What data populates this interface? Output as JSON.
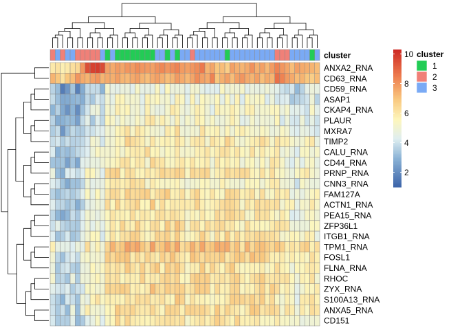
{
  "chart_data": {
    "type": "heatmap",
    "annotation_label": "cluster",
    "legend_title": "cluster",
    "cluster_levels": [
      {
        "label": "1",
        "color": "#22cc55"
      },
      {
        "label": "2",
        "color": "#f08078"
      },
      {
        "label": "3",
        "color": "#7aaaf5"
      }
    ],
    "color_scale": {
      "range": [
        1,
        10.3
      ],
      "ticks": [
        "10",
        "8",
        "6",
        "4",
        "2"
      ],
      "tick_values": [
        10,
        8,
        6,
        4,
        2
      ],
      "stops": [
        {
          "value": 1.0,
          "color": "#3a62a8"
        },
        {
          "value": 3.0,
          "color": "#8cb4d6"
        },
        {
          "value": 4.3,
          "color": "#dfeef0"
        },
        {
          "value": 5.6,
          "color": "#fdf6bc"
        },
        {
          "value": 7.0,
          "color": "#f9c77e"
        },
        {
          "value": 8.5,
          "color": "#ee7e4f"
        },
        {
          "value": 10.3,
          "color": "#ce2a24"
        }
      ]
    },
    "column_clusters": [
      2,
      3,
      2,
      3,
      3,
      2,
      2,
      2,
      2,
      2,
      3,
      1,
      3,
      1,
      1,
      1,
      1,
      1,
      1,
      1,
      1,
      3,
      3,
      1,
      3,
      1,
      3,
      3,
      2,
      3,
      3,
      3,
      3,
      3,
      3,
      1,
      3,
      3,
      3,
      3,
      3,
      3,
      3,
      3,
      3,
      2,
      2,
      2,
      3,
      3,
      3,
      3,
      1,
      3
    ],
    "rows": [
      {
        "gene": "ANXA2_RNA",
        "base": 7.2,
        "values": [
          6.0,
          6.2,
          5.8,
          6.0,
          6.3,
          6.5,
          8.0,
          9.5,
          9.8,
          9.9,
          9.6,
          7.8,
          7.6,
          7.9,
          7.7,
          8.0,
          7.9,
          8.2,
          8.0,
          7.9,
          7.8,
          8.1,
          8.3,
          8.0,
          8.2,
          8.4,
          7.9,
          7.8,
          8.0,
          8.2,
          8.6,
          7.4,
          7.7,
          7.0,
          7.2,
          6.8,
          7.8,
          7.5,
          7.4,
          7.6,
          8.1,
          7.5,
          7.8,
          7.3,
          7.9,
          8.4,
          8.0,
          7.7,
          7.2,
          7.8,
          7.6,
          7.5,
          7.4,
          7.2
        ]
      },
      {
        "gene": "CD63_RNA",
        "base": 7.6,
        "values": [
          7.4,
          7.0,
          6.2,
          7.0,
          7.2,
          8.0,
          7.6,
          7.4,
          7.8,
          8.0,
          7.4,
          7.6,
          7.5,
          7.8,
          7.4,
          7.3,
          7.6,
          7.8,
          7.4,
          7.2,
          7.6,
          7.8,
          7.5,
          7.2,
          7.4,
          7.9,
          7.6,
          7.3,
          7.7,
          8.2,
          7.8,
          7.6,
          8.4,
          7.0,
          7.5,
          7.8,
          7.2,
          7.8,
          8.0,
          7.6,
          7.4,
          7.8,
          7.2,
          7.6,
          7.4,
          8.8,
          8.4,
          7.9,
          7.6,
          7.2,
          7.4,
          7.0,
          6.8,
          7.2
        ]
      }
    ]
  },
  "row_labels": [
    "ANXA2_RNA",
    "CD63_RNA",
    "CD59_RNA",
    "ASAP1",
    "CKAP4_RNA",
    "PLAUR",
    "MXRA7",
    "TIMP2",
    "CALU_RNA",
    "CD44_RNA",
    "PRNP_RNA",
    "CNN3_RNA",
    "FAM127A",
    "ACTN1_RNA",
    "PEA15_RNA",
    "ZFP36L1",
    "ITGB1_RNA",
    "TPM1_RNA",
    "FOSL1",
    "FLNA_RNA",
    "RHOC",
    "ZYX_RNA",
    "S100A13_RNA",
    "ANXA5_RNA",
    "CD151"
  ],
  "row_base": [
    7.2,
    7.6,
    4.6,
    4.8,
    5.0,
    5.0,
    5.2,
    5.6,
    5.6,
    5.4,
    5.8,
    5.4,
    5.8,
    5.8,
    5.6,
    5.8,
    5.8,
    6.6,
    6.2,
    6.0,
    6.0,
    6.0,
    5.9,
    6.0,
    5.8
  ],
  "col_base": [
    4.0,
    3.4,
    3.0,
    3.2,
    3.6,
    3.0,
    3.8,
    4.8,
    4.6,
    5.2,
    4.4,
    5.6,
    5.8,
    6.0,
    5.8,
    6.2,
    6.0,
    6.1,
    5.9,
    6.0,
    6.3,
    6.0,
    5.8,
    6.2,
    6.0,
    6.4,
    5.8,
    5.6,
    5.9,
    6.0,
    6.2,
    5.8,
    5.6,
    6.0,
    5.8,
    6.1,
    6.0,
    5.9,
    5.7,
    5.8,
    6.0,
    5.8,
    5.9,
    5.6,
    5.8,
    5.6,
    5.4,
    5.2,
    4.8,
    4.6,
    5.0,
    5.2,
    5.4,
    5.0
  ]
}
